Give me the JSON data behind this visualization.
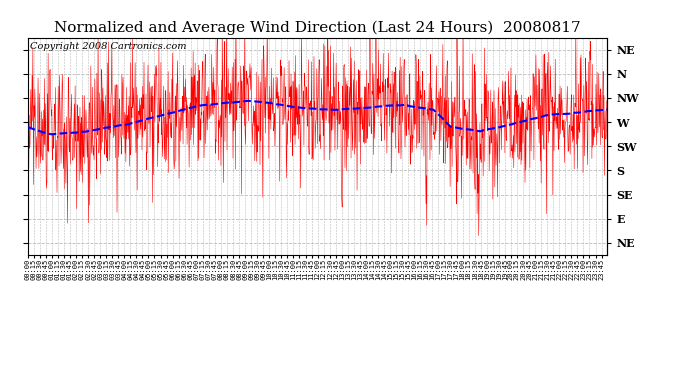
{
  "title": "Normalized and Average Wind Direction (Last 24 Hours)  20080817",
  "copyright_text": "Copyright 2008 Cartronics.com",
  "ytick_labels": [
    "NE",
    "N",
    "NW",
    "W",
    "SW",
    "S",
    "SE",
    "E",
    "NE"
  ],
  "ytick_values": [
    8,
    7,
    6,
    5,
    4,
    3,
    2,
    1,
    0
  ],
  "ylim": [
    -0.5,
    8.5
  ],
  "background_color": "#ffffff",
  "grid_color": "#bbbbbb",
  "red_line_color": "#ff0000",
  "blue_line_color": "#0000ff",
  "title_fontsize": 11,
  "copyright_fontsize": 7,
  "seed": 42,
  "n_points": 1440,
  "avg_interp_t": [
    0,
    0.04,
    0.1,
    0.17,
    0.22,
    0.3,
    0.38,
    0.47,
    0.53,
    0.6,
    0.65,
    0.7,
    0.73,
    0.78,
    0.85,
    0.9,
    0.95,
    1.0
  ],
  "avg_interp_v": [
    4.8,
    4.5,
    4.6,
    4.9,
    5.2,
    5.7,
    5.9,
    5.6,
    5.5,
    5.6,
    5.7,
    5.5,
    4.8,
    4.6,
    5.0,
    5.3,
    5.4,
    5.5
  ],
  "xtick_step": 15,
  "figwidth": 6.9,
  "figheight": 3.75,
  "dpi": 100
}
